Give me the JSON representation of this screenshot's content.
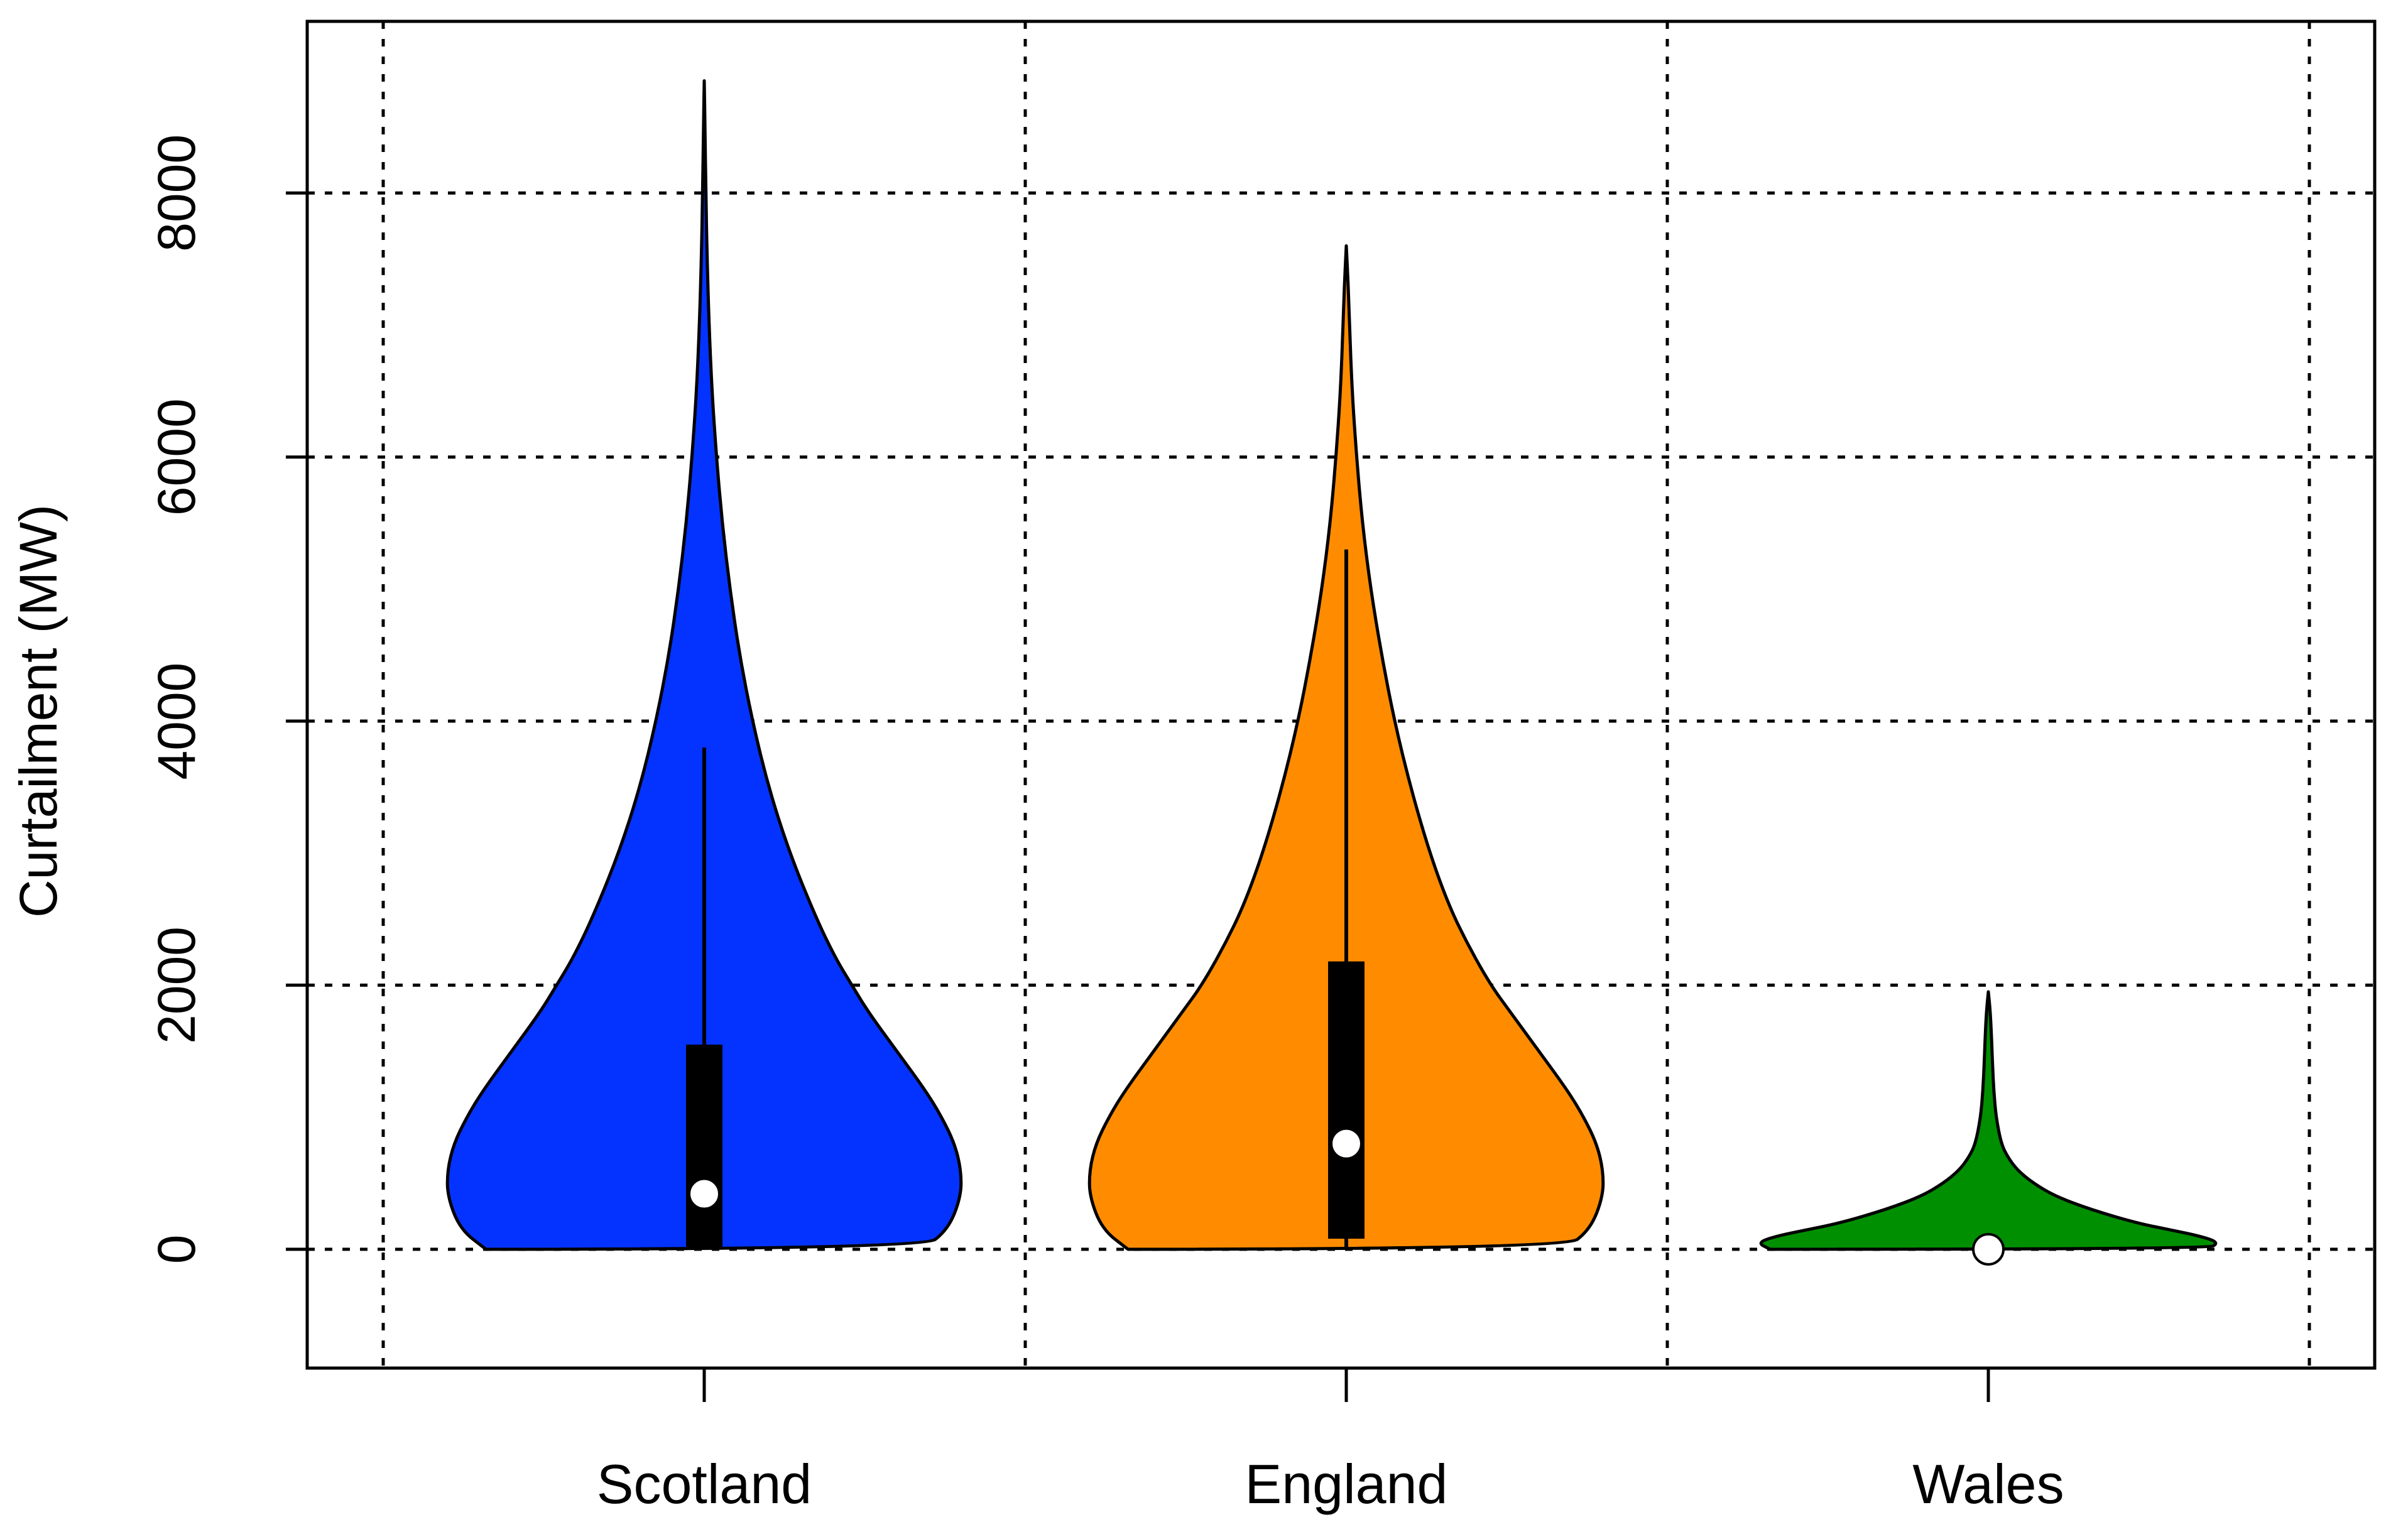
{
  "chart_data": {
    "type": "violin",
    "title": "",
    "xlabel": "",
    "ylabel": "Curtailment (MW)",
    "ylim": [
      -900,
      9300
    ],
    "yticks": [
      0,
      2000,
      4000,
      6000,
      8000
    ],
    "ytick_labels": [
      "0",
      "2000",
      "4000",
      "6000",
      "8000"
    ],
    "x_grid_positions": [
      0.5,
      1.5,
      2.5,
      3.5
    ],
    "grid": true,
    "grid_style": "dotted",
    "categories": [
      "Scotland",
      "England",
      "Wales"
    ],
    "series": [
      {
        "category": "Scotland",
        "color": "#0433ff",
        "min": 0,
        "q1": 0,
        "median": 420,
        "q3": 1550,
        "whisker_high": 3800,
        "max": 8850,
        "density_profile": [
          [
            0,
            0.34
          ],
          [
            150,
            0.38
          ],
          [
            400,
            0.4
          ],
          [
            600,
            0.4
          ],
          [
            800,
            0.39
          ],
          [
            1000,
            0.37
          ],
          [
            1200,
            0.345
          ],
          [
            1500,
            0.3
          ],
          [
            1800,
            0.255
          ],
          [
            2000,
            0.23
          ],
          [
            2200,
            0.205
          ],
          [
            2500,
            0.175
          ],
          [
            3000,
            0.133
          ],
          [
            3500,
            0.1
          ],
          [
            4000,
            0.075
          ],
          [
            4500,
            0.055
          ],
          [
            5000,
            0.04
          ],
          [
            5500,
            0.028
          ],
          [
            6000,
            0.019
          ],
          [
            6500,
            0.012
          ],
          [
            7000,
            0.0075
          ],
          [
            7500,
            0.0045
          ],
          [
            8000,
            0.0025
          ],
          [
            8500,
            0.0012
          ],
          [
            8850,
            0
          ]
        ]
      },
      {
        "category": "England",
        "color": "#ff8c00",
        "min": 0,
        "q1": 80,
        "median": 800,
        "q3": 2180,
        "whisker_high": 5300,
        "max": 7600,
        "density_profile": [
          [
            0,
            0.34
          ],
          [
            150,
            0.38
          ],
          [
            400,
            0.4
          ],
          [
            600,
            0.4
          ],
          [
            800,
            0.39
          ],
          [
            1000,
            0.37
          ],
          [
            1200,
            0.345
          ],
          [
            1500,
            0.3
          ],
          [
            1800,
            0.255
          ],
          [
            2000,
            0.225
          ],
          [
            2300,
            0.19
          ],
          [
            2600,
            0.16
          ],
          [
            3000,
            0.13
          ],
          [
            3500,
            0.1
          ],
          [
            4000,
            0.075
          ],
          [
            4500,
            0.055
          ],
          [
            5000,
            0.038
          ],
          [
            5500,
            0.025
          ],
          [
            6000,
            0.016
          ],
          [
            6500,
            0.009
          ],
          [
            7000,
            0.005
          ],
          [
            7300,
            0.003
          ],
          [
            7600,
            0
          ]
        ]
      },
      {
        "category": "Wales",
        "color": "#008f00",
        "min": 0,
        "q1": 0,
        "median": 0,
        "q3": 0,
        "whisker_high": 0,
        "max": 1950,
        "density_profile": [
          [
            0,
            0.34
          ],
          [
            50,
            0.36
          ],
          [
            100,
            0.33
          ],
          [
            150,
            0.28
          ],
          [
            200,
            0.23
          ],
          [
            300,
            0.16
          ],
          [
            400,
            0.105
          ],
          [
            500,
            0.07
          ],
          [
            600,
            0.045
          ],
          [
            700,
            0.03
          ],
          [
            800,
            0.02
          ],
          [
            1000,
            0.012
          ],
          [
            1200,
            0.0085
          ],
          [
            1400,
            0.0065
          ],
          [
            1600,
            0.005
          ],
          [
            1800,
            0.003
          ],
          [
            1950,
            0
          ]
        ]
      }
    ]
  }
}
